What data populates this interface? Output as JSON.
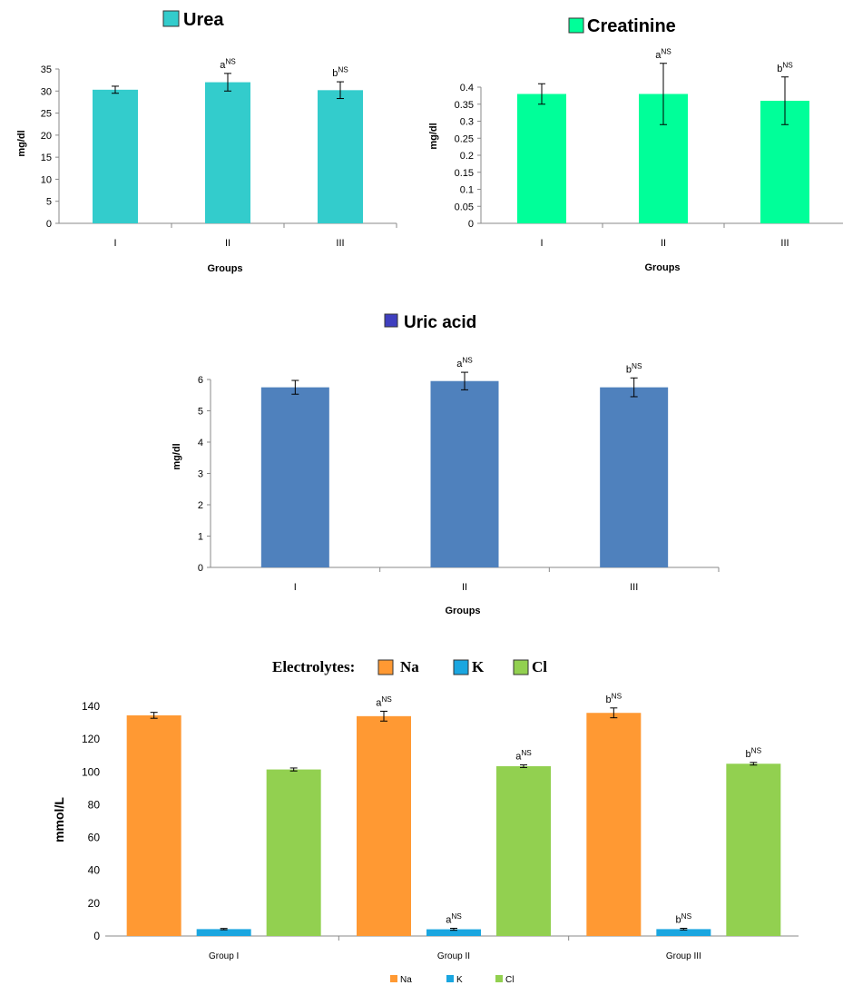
{
  "chart_data": [
    {
      "type": "bar",
      "title": "Urea",
      "legend_label": "Urea",
      "xlabel": "Groups",
      "ylabel": "mg/dl",
      "categories": [
        "I",
        "II",
        "III"
      ],
      "values": [
        30.3,
        32.0,
        30.2
      ],
      "errors": [
        0.8,
        2.0,
        1.9
      ],
      "annotations": [
        "",
        "a",
        "b"
      ],
      "annotation_sup": "NS",
      "ylim": [
        0,
        35
      ],
      "yticks": [
        "0",
        "5",
        "10",
        "15",
        "20",
        "25",
        "30",
        "35"
      ],
      "tick_values": [
        0,
        5,
        10,
        15,
        20,
        25,
        30,
        35
      ],
      "color": "#33CCCC",
      "grid": false,
      "legend_position": "top"
    },
    {
      "type": "bar",
      "title": "Creatinine",
      "legend_label": "Creatinine",
      "xlabel": "Groups",
      "ylabel": "mg/dl",
      "categories": [
        "I",
        "II",
        "III"
      ],
      "values": [
        0.38,
        0.38,
        0.36
      ],
      "errors": [
        0.03,
        0.09,
        0.07
      ],
      "annotations": [
        "",
        "a",
        "b"
      ],
      "annotation_sup": "NS",
      "ylim": [
        0,
        0.4
      ],
      "yticks": [
        "0",
        "0.05",
        "0.1",
        "0.15",
        "0.2",
        "0.25",
        "0.3",
        "0.35",
        "0.4"
      ],
      "tick_values": [
        0,
        0.05,
        0.1,
        0.15,
        0.2,
        0.25,
        0.3,
        0.35,
        0.4
      ],
      "color": "#00FF99",
      "grid": false,
      "legend_position": "top"
    },
    {
      "type": "bar",
      "title": "Uric acid",
      "legend_label": "Uric acid",
      "xlabel": "Groups",
      "ylabel": "mg/dl",
      "categories": [
        "I",
        "II",
        "III"
      ],
      "values": [
        5.75,
        5.95,
        5.75
      ],
      "errors": [
        0.22,
        0.28,
        0.3
      ],
      "annotations": [
        "",
        "a",
        "b"
      ],
      "annotation_sup": "NS",
      "ylim": [
        0,
        6
      ],
      "yticks": [
        "0",
        "1",
        "2",
        "3",
        "4",
        "5",
        "6"
      ],
      "tick_values": [
        0,
        1,
        2,
        3,
        4,
        5,
        6
      ],
      "color": "#4F81BD",
      "grid": false,
      "legend_position": "top"
    },
    {
      "type": "bar",
      "title": "Electrolytes:",
      "xlabel": "",
      "ylabel": "mmol/L",
      "categories": [
        "Group I",
        "Group II",
        "Group III"
      ],
      "series": [
        {
          "name": "Na",
          "values": [
            134.5,
            134.0,
            136.0
          ],
          "errors": [
            1.8,
            3.0,
            3.0
          ],
          "annotations": [
            "",
            "a",
            "b"
          ],
          "color": "#FF9933"
        },
        {
          "name": "K",
          "values": [
            4.2,
            4.1,
            4.2
          ],
          "errors": [
            0.4,
            0.6,
            0.5
          ],
          "annotations": [
            "",
            "a",
            "b"
          ],
          "color": "#1AA6E0"
        },
        {
          "name": "Cl",
          "values": [
            101.5,
            103.5,
            105.0
          ],
          "errors": [
            0.9,
            0.8,
            0.8
          ],
          "annotations": [
            "",
            "a",
            "b"
          ],
          "color": "#92D050"
        }
      ],
      "annotation_sup": "NS",
      "ylim": [
        0,
        140
      ],
      "yticks": [
        "0",
        "20",
        "40",
        "60",
        "80",
        "100",
        "120",
        "140"
      ],
      "tick_values": [
        0,
        20,
        40,
        60,
        80,
        100,
        120,
        140
      ],
      "grid": false,
      "legend_position": "top and bottom"
    }
  ]
}
